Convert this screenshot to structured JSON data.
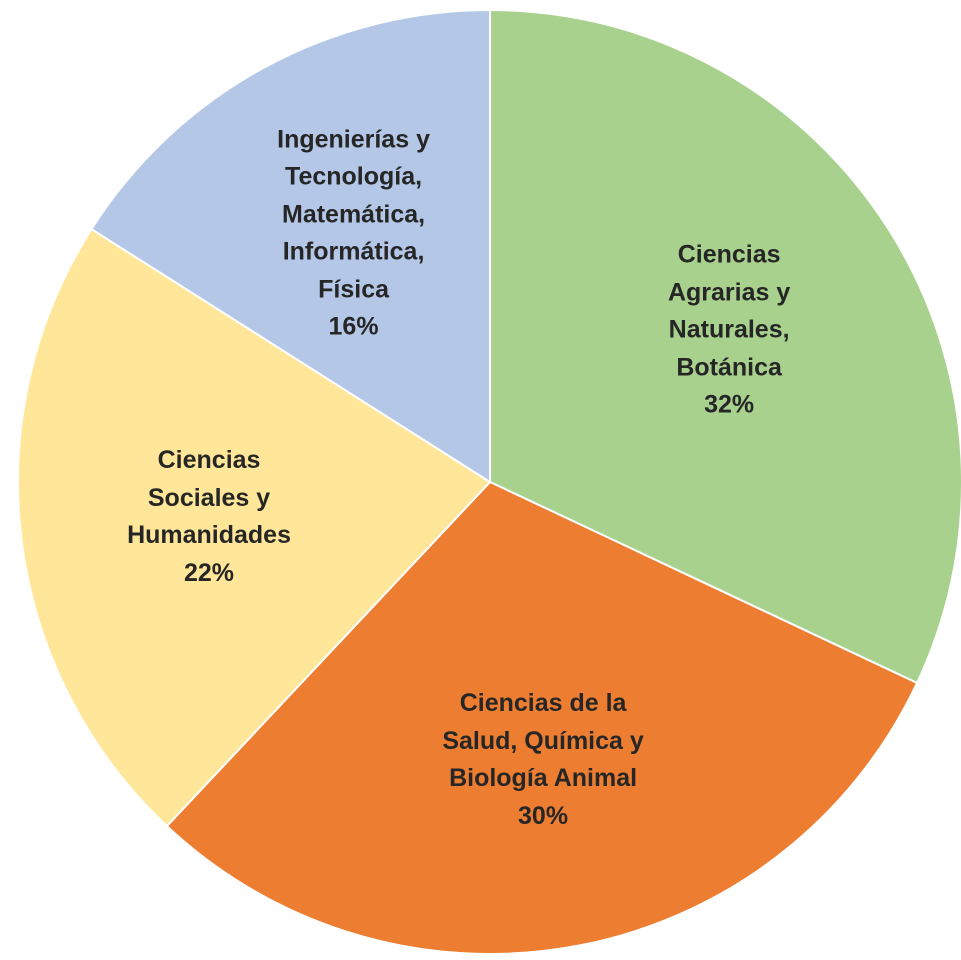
{
  "chart_data": {
    "type": "pie",
    "categories": [
      "Ciencias Agrarias y Naturales, Botánica",
      "Ciencias de la Salud, Química y Biología Animal",
      "Ciencias Sociales y Humanidades",
      "Ingenierías y Tecnología, Matemática, Informática, Física"
    ],
    "values": [
      32,
      30,
      22,
      16
    ],
    "value_labels": [
      "32%",
      "30%",
      "22%",
      "16%"
    ],
    "colors": [
      "#a9d18e",
      "#ed7d31",
      "#ffe699",
      "#b4c7e7"
    ]
  }
}
